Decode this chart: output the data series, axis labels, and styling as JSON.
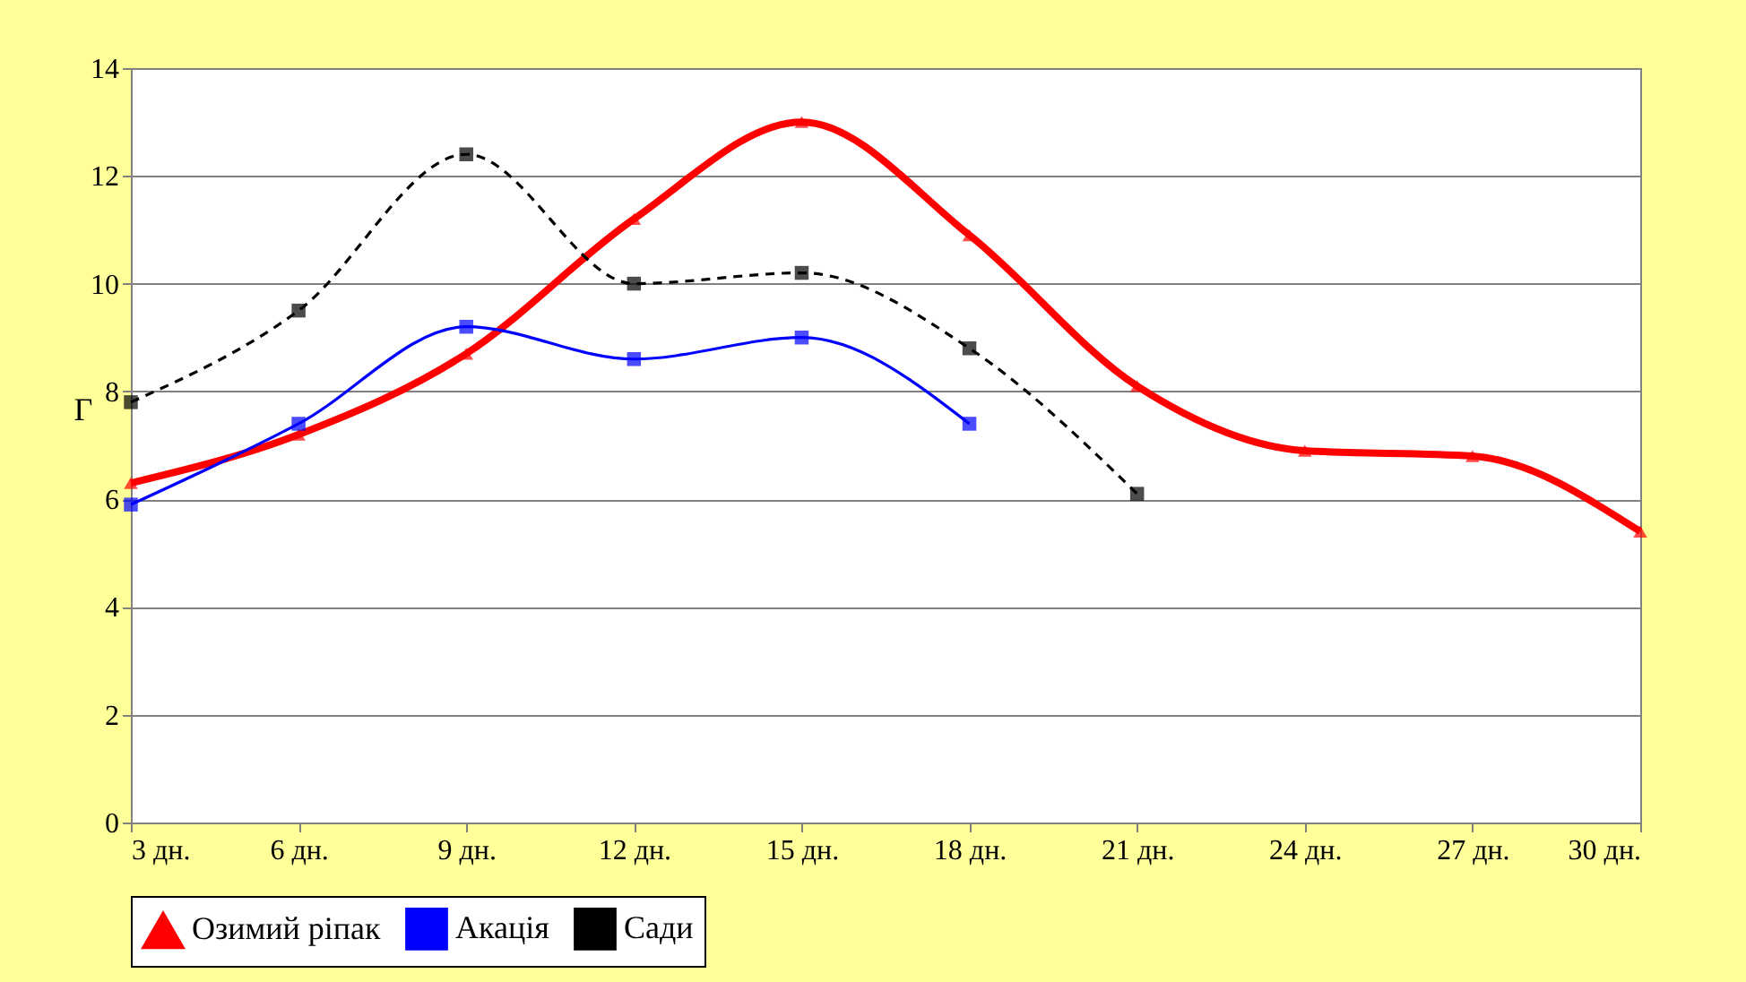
{
  "chart_data": {
    "type": "line",
    "ylabel": "Г",
    "categories": [
      "3 дн.",
      "6 дн.",
      "9 дн.",
      "12 дн.",
      "15 дн.",
      "18 дн.",
      "21 дн.",
      "24 дн.",
      "27 дн.",
      "30 дн."
    ],
    "ylim": [
      0,
      14
    ],
    "yticks": [
      0,
      2,
      4,
      6,
      8,
      10,
      12,
      14
    ],
    "grid": "y",
    "legend": "bottom",
    "series": [
      {
        "name": "Озимий ріпак",
        "color": "#ff0000",
        "marker": "triangle",
        "line_style": "solid",
        "values": [
          6.3,
          7.2,
          8.7,
          11.2,
          13.0,
          10.9,
          8.1,
          6.9,
          6.8,
          5.4
        ]
      },
      {
        "name": "Акація",
        "color": "#0000ff",
        "marker": "square",
        "line_style": "solid",
        "values": [
          5.9,
          7.4,
          9.2,
          8.6,
          9.0,
          7.4,
          null,
          null,
          null,
          null
        ]
      },
      {
        "name": "Сади",
        "color": "#000000",
        "marker": "square",
        "line_style": "dashed",
        "values": [
          7.8,
          9.5,
          12.4,
          10.0,
          10.2,
          8.8,
          6.1,
          null,
          null,
          null
        ]
      }
    ]
  }
}
